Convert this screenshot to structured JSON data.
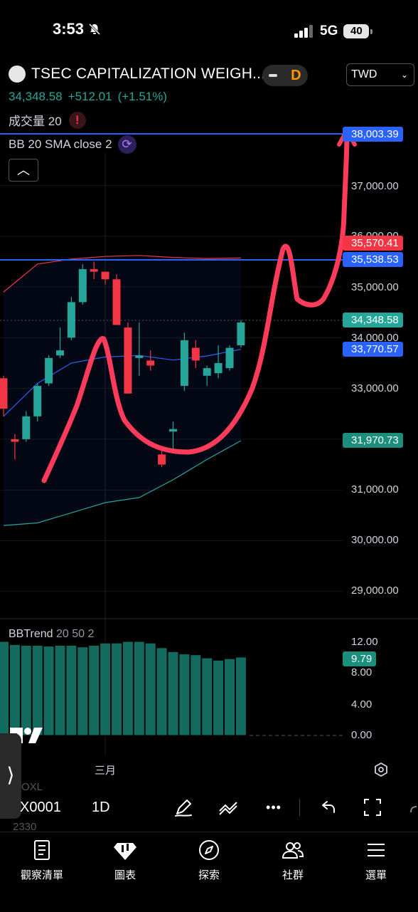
{
  "status_bar": {
    "time": "3:53",
    "network": "5G",
    "battery": "40"
  },
  "header": {
    "symbol_title": "TSEC CAPITALIZATION WEIGH...",
    "interval_badge": "D",
    "currency": "TWD",
    "price": "34,348.58",
    "change": "+512.01",
    "change_pct": "(+1.51%)"
  },
  "indicators": {
    "volume_label": "成交量",
    "volume_param": "20",
    "bb_label": "BB 20 SMA close 2",
    "bbtrend_label": "BBTrend",
    "bbtrend_params": "20 50 2"
  },
  "price_axis": {
    "ticks": [
      "37,000.00",
      "36,000.00",
      "35,000.00",
      "34,000.00",
      "33,000.00",
      "31,000.00",
      "30,000.00",
      "29,000.00"
    ],
    "tags": {
      "line_top": "38,003.39",
      "bb_upper": "35,570.41",
      "line_mid": "35,538.53",
      "last_price": "34,348.58",
      "bb_basis": "33,770.57",
      "bb_lower": "31,970.73"
    }
  },
  "osc_axis": {
    "ticks": [
      "12.00",
      "8.00",
      "4.00",
      "0.00"
    ],
    "current": "9.79"
  },
  "time_axis": {
    "month_label": "三月"
  },
  "toolbar": {
    "ghost_above": "OXL",
    "symbol": "X0001",
    "interval": "1D",
    "ghost_below": "2330"
  },
  "bottom_nav": [
    {
      "label": "觀察清單"
    },
    {
      "label": "圖表"
    },
    {
      "label": "探索"
    },
    {
      "label": "社群"
    },
    {
      "label": "選單"
    }
  ],
  "colors": {
    "up": "#26a69a",
    "down": "#f23645",
    "hline": "#2962ff",
    "bb_upper": "#f23645",
    "bb_basis": "#2962ff",
    "bb_lower": "#26a69a",
    "annotation": "#ff3b5c"
  },
  "chart_data": {
    "type": "candlestick",
    "y_range": [
      28500,
      38300
    ],
    "candles": [
      {
        "o": 33200,
        "h": 33250,
        "l": 32450,
        "c": 32600
      },
      {
        "o": 32000,
        "h": 32100,
        "l": 31600,
        "c": 31950
      },
      {
        "o": 32000,
        "h": 32550,
        "l": 31950,
        "c": 32450
      },
      {
        "o": 32450,
        "h": 33100,
        "l": 32350,
        "c": 33050
      },
      {
        "o": 33100,
        "h": 33650,
        "l": 33050,
        "c": 33600
      },
      {
        "o": 33650,
        "h": 34200,
        "l": 33600,
        "c": 33750
      },
      {
        "o": 34000,
        "h": 34800,
        "l": 33950,
        "c": 34700
      },
      {
        "o": 34700,
        "h": 35450,
        "l": 34650,
        "c": 35350
      },
      {
        "o": 35350,
        "h": 35500,
        "l": 35150,
        "c": 35300
      },
      {
        "o": 35300,
        "h": 35300,
        "l": 35050,
        "c": 35150
      },
      {
        "o": 35150,
        "h": 35250,
        "l": 34250,
        "c": 34250
      },
      {
        "o": 34200,
        "h": 34300,
        "l": 32900,
        "c": 32900
      },
      {
        "o": 33600,
        "h": 34300,
        "l": 33250,
        "c": 33650
      },
      {
        "o": 33550,
        "h": 33750,
        "l": 33350,
        "c": 33450
      },
      {
        "o": 31700,
        "h": 31850,
        "l": 31450,
        "c": 31500
      },
      {
        "o": 32150,
        "h": 32350,
        "l": 31800,
        "c": 32200
      },
      {
        "o": 33050,
        "h": 34100,
        "l": 32950,
        "c": 33950
      },
      {
        "o": 33800,
        "h": 33950,
        "l": 33400,
        "c": 33550
      },
      {
        "o": 33250,
        "h": 33450,
        "l": 33050,
        "c": 33400
      },
      {
        "o": 33300,
        "h": 33850,
        "l": 33200,
        "c": 33500
      },
      {
        "o": 33400,
        "h": 33850,
        "l": 33350,
        "c": 33800
      },
      {
        "o": 33850,
        "h": 34350,
        "l": 33800,
        "c": 34300
      }
    ],
    "bb_upper": [
      34900,
      35450,
      35550,
      35600,
      35620,
      35580,
      35560,
      35570
    ],
    "bb_basis": [
      32450,
      33100,
      33500,
      33620,
      33650,
      33560,
      33640,
      33770
    ],
    "bb_lower": [
      30300,
      30350,
      30550,
      30750,
      30850,
      31200,
      31600,
      31970
    ],
    "hlines": [
      38003.39,
      35538.53
    ],
    "osc_range": [
      0,
      12.5
    ],
    "bbtrend": [
      12.0,
      11.6,
      11.5,
      11.5,
      11.4,
      11.5,
      11.5,
      11.3,
      11.5,
      11.8,
      11.8,
      12.0,
      12.0,
      11.8,
      11.2,
      10.7,
      10.4,
      10.3,
      9.9,
      9.6,
      9.8,
      10.0
    ]
  }
}
